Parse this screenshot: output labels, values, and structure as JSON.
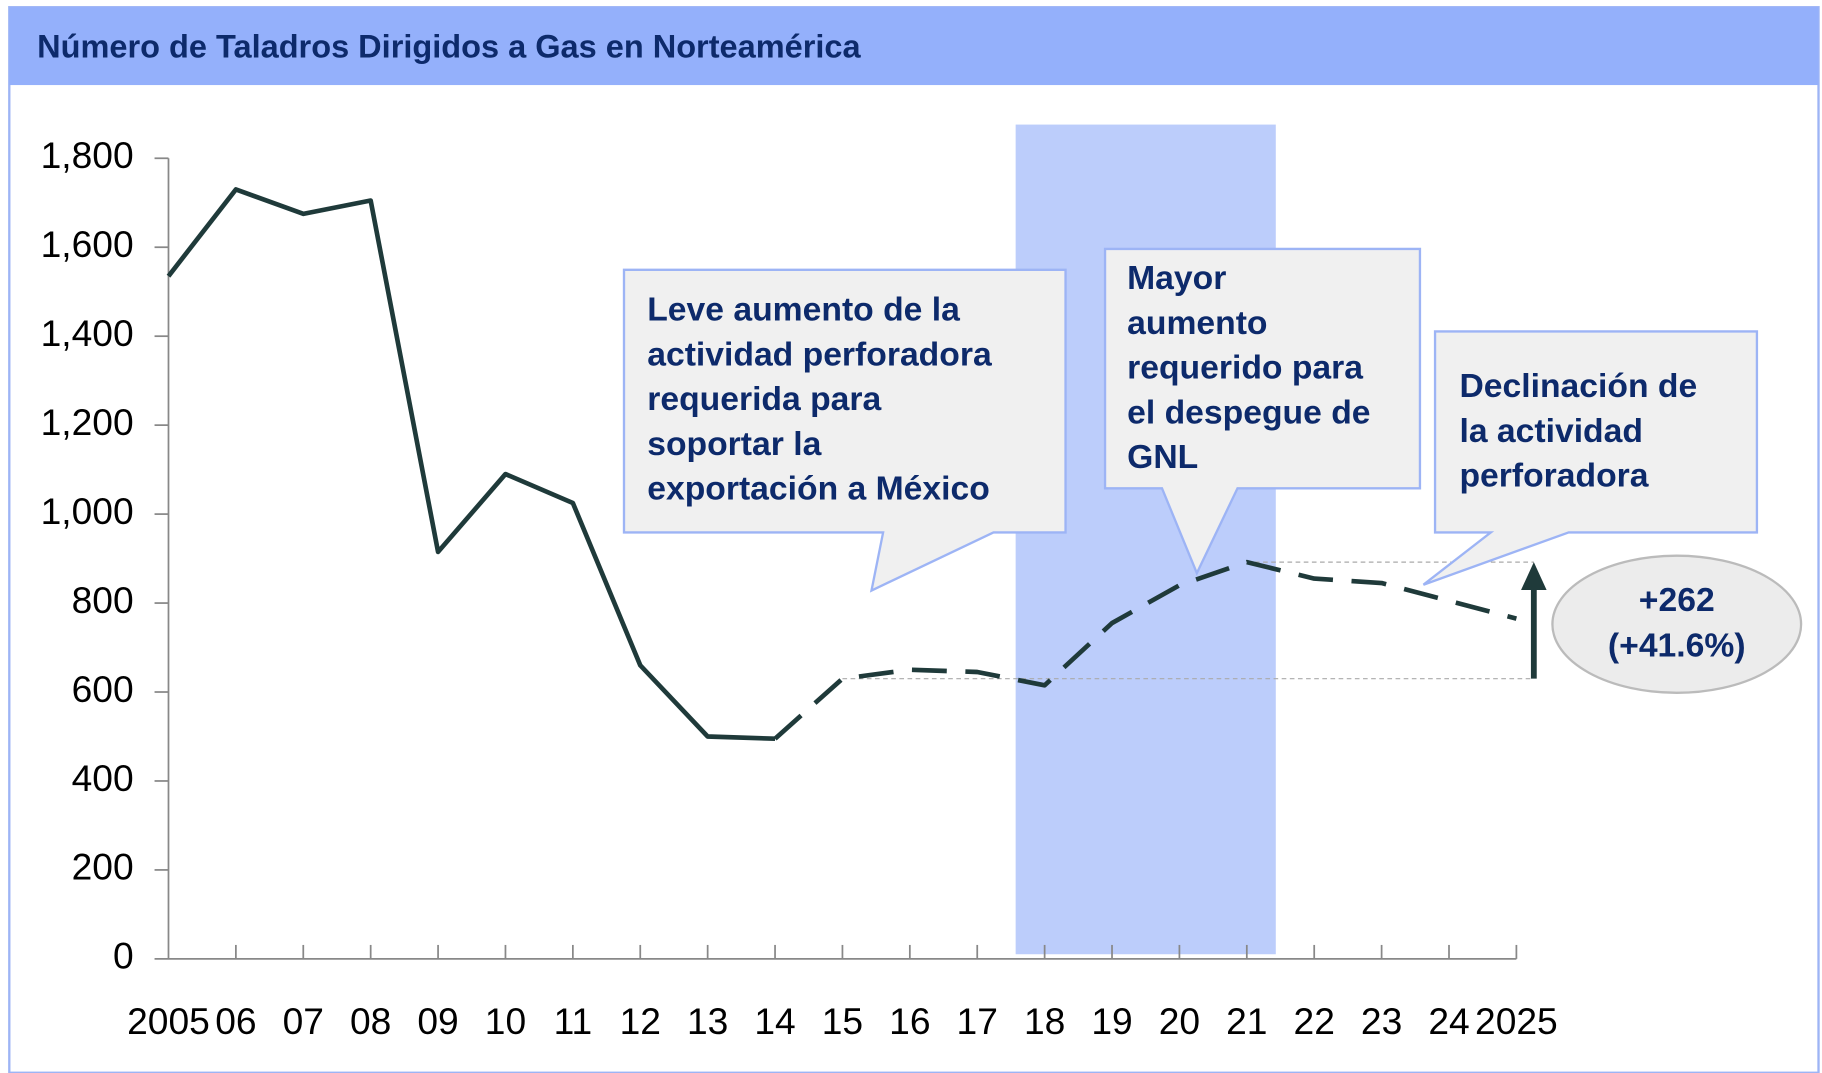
{
  "chart_data": {
    "type": "line",
    "title": "Número de Taladros Dirigidos a Gas en Norteamérica",
    "categories": [
      "2005",
      "06",
      "07",
      "08",
      "09",
      "10",
      "11",
      "12",
      "13",
      "14",
      "15",
      "16",
      "17",
      "18",
      "19",
      "20",
      "21",
      "22",
      "23",
      "24",
      "2025"
    ],
    "series": [
      {
        "color": "#1f3a3a",
        "style": "solid",
        "values": [
          1535,
          1730,
          1675,
          1705,
          915,
          1090,
          1025,
          660,
          500,
          495,
          null,
          null,
          null,
          null,
          null,
          null,
          null,
          null,
          null,
          null,
          null
        ]
      },
      {
        "color": "#1f3a3a",
        "style": "dashed",
        "values": [
          null,
          null,
          null,
          null,
          null,
          null,
          null,
          null,
          null,
          495,
          630,
          650,
          645,
          615,
          755,
          840,
          892,
          855,
          845,
          805,
          765
        ]
      }
    ],
    "ylim": [
      0,
      1800
    ],
    "yticks": [
      0,
      200,
      400,
      600,
      800,
      {
        "value": 1000,
        "label": "1,000"
      },
      {
        "value": 1200,
        "label": "1,200"
      },
      {
        "value": 1400,
        "label": "1,400"
      },
      {
        "value": 1600,
        "label": "1,600"
      },
      {
        "value": 1800,
        "label": "1,800"
      }
    ],
    "highlight": {
      "from": "18",
      "to": "21",
      "color": "#bccdfb"
    },
    "annotations": [
      {
        "lines": [
          "Leve aumento de la",
          "actividad perforadora",
          "requerida para",
          "soportar la",
          "exportación a México"
        ]
      },
      {
        "lines": [
          "Mayor",
          "aumento",
          "requerido para",
          "el despegue de",
          "GNL"
        ]
      },
      {
        "lines": [
          "Declinación de",
          "la actividad",
          "perforadora"
        ]
      }
    ],
    "change": {
      "from": "15",
      "to": "21",
      "lines": [
        "+262",
        "(+41.6%)"
      ]
    }
  }
}
